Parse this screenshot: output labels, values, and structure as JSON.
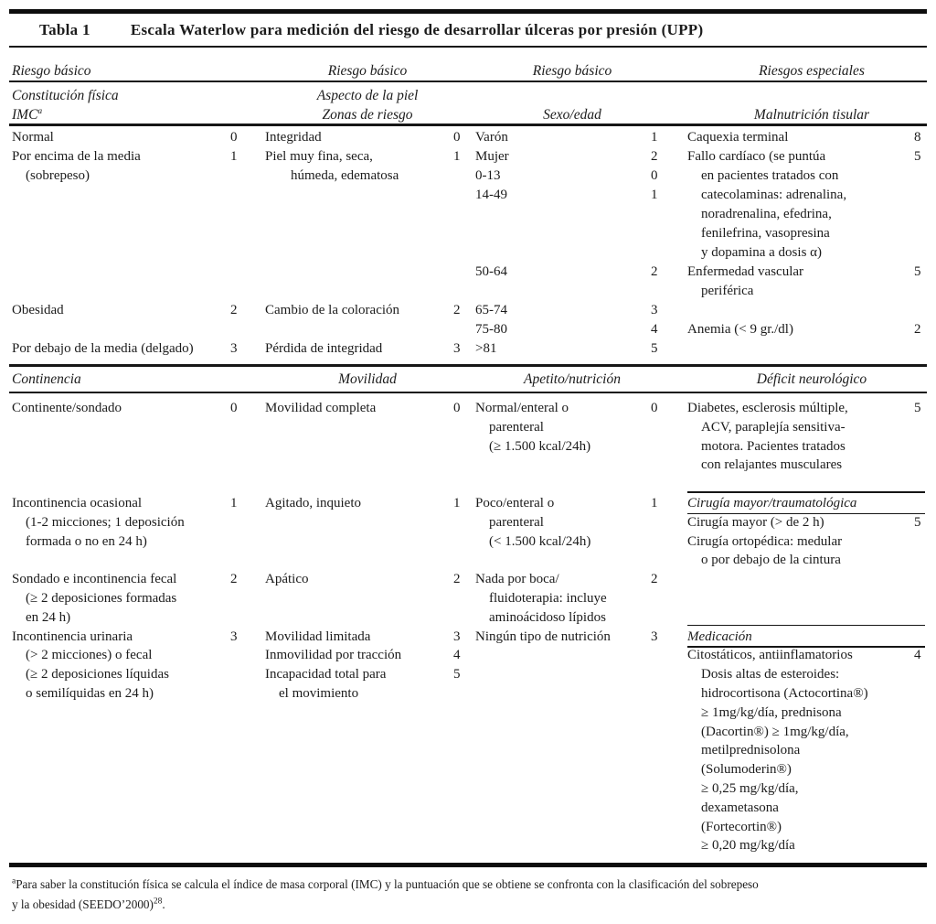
{
  "title": {
    "label": "Tabla 1",
    "text": "Escala Waterlow para medición del riesgo de desarrollar úlceras por presión (UPP)"
  },
  "section1": {
    "headers": [
      "Riesgo básico",
      "Riesgo básico",
      "Riesgo básico",
      "Riesgos especiales"
    ],
    "subheaders": {
      "col1_line1": "Constitución física",
      "col1_line2": "IMC",
      "col1_line2_sup": "a",
      "col2_line1": "Aspecto de la piel",
      "col2_line2": "Zonas de riesgo",
      "col3_line2": "Sexo/edad",
      "col4_line2": "Malnutrición tisular"
    },
    "groups": [
      {
        "lines": [
          {
            "row": 0,
            "text": "Normal",
            "score": "0"
          },
          {
            "row": 1,
            "text": "Por encima de la media",
            "score": "1"
          },
          {
            "row": 2,
            "text": "(sobrepeso)",
            "indent": 1
          },
          {
            "row": 9,
            "text": "Obesidad",
            "score": "2"
          },
          {
            "row": 11,
            "text": "Por debajo de la media (delgado)",
            "score": "3"
          }
        ]
      },
      {
        "lines": [
          {
            "row": 0,
            "text": "Integridad",
            "score": "0"
          },
          {
            "row": 1,
            "text": "Piel muy fina, seca,",
            "score": "1"
          },
          {
            "row": 2,
            "text": "húmeda, edematosa",
            "indent": 2
          },
          {
            "row": 9,
            "text": "Cambio de la coloración",
            "score": "2"
          },
          {
            "row": 11,
            "text": "Pérdida de integridad",
            "score": "3"
          }
        ]
      },
      {
        "lines": [
          {
            "row": 0,
            "text": "Varón",
            "score": "1"
          },
          {
            "row": 1,
            "text": "Mujer",
            "score": "2"
          },
          {
            "row": 2,
            "text": "0-13",
            "score": "0"
          },
          {
            "row": 3,
            "text": "14-49",
            "score": "1"
          },
          {
            "row": 7,
            "text": "50-64",
            "score": "2"
          },
          {
            "row": 9,
            "text": "65-74",
            "score": "3"
          },
          {
            "row": 10,
            "text": "75-80",
            "score": "4"
          },
          {
            "row": 11,
            "text": ">81",
            "score": "5"
          }
        ]
      },
      {
        "lines": [
          {
            "row": 0,
            "text": "Caquexia terminal",
            "score": "8"
          },
          {
            "row": 1,
            "text": "Fallo cardíaco (se puntúa",
            "score": "5"
          },
          {
            "row": 2,
            "text": "en pacientes tratados con",
            "indent": 1
          },
          {
            "row": 3,
            "text": "catecolaminas: adrenalina,",
            "indent": 1
          },
          {
            "row": 4,
            "text": "noradrenalina, efedrina,",
            "indent": 1
          },
          {
            "row": 5,
            "text": "fenilefrina, vasopresina",
            "indent": 1
          },
          {
            "row": 6,
            "text": "y dopamina a dosis α)",
            "indent": 1
          },
          {
            "row": 7,
            "text": "Enfermedad vascular",
            "score": "5"
          },
          {
            "row": 8,
            "text": "periférica",
            "indent": 1
          },
          {
            "row": 10,
            "text": "Anemia (< 9 gr./dl)",
            "score": "2"
          }
        ]
      }
    ]
  },
  "section2": {
    "headers": [
      "Continencia",
      "Movilidad",
      "Apetito/nutrición",
      "Déficit neurológico"
    ],
    "groups": [
      {
        "lines": [
          {
            "row": 0,
            "text": "Continente/sondado",
            "score": "0"
          },
          {
            "row": 5,
            "text": "Incontinencia ocasional",
            "score": "1"
          },
          {
            "row": 6,
            "text": "(1-2 micciones; 1 deposición",
            "indent": 1
          },
          {
            "row": 7,
            "text": "formada o no en 24 h)",
            "indent": 1
          },
          {
            "row": 9,
            "text": "Sondado e incontinencia fecal",
            "score": "2"
          },
          {
            "row": 10,
            "text": "(≥ 2 deposiciones formadas",
            "indent": 1
          },
          {
            "row": 11,
            "text": "en 24 h)",
            "indent": 1
          },
          {
            "row": 12,
            "text": "Incontinencia urinaria",
            "score": "3"
          },
          {
            "row": 13,
            "text": "(> 2 micciones) o fecal",
            "indent": 1
          },
          {
            "row": 14,
            "text": "(≥ 2 deposiciones líquidas",
            "indent": 1
          },
          {
            "row": 15,
            "text": "o semilíquidas en 24 h)",
            "indent": 1
          }
        ]
      },
      {
        "lines": [
          {
            "row": 0,
            "text": "Movilidad completa",
            "score": "0"
          },
          {
            "row": 5,
            "text": "Agitado, inquieto",
            "score": "1"
          },
          {
            "row": 9,
            "text": "Apático",
            "score": "2"
          },
          {
            "row": 12,
            "text": "Movilidad limitada",
            "score": "3"
          },
          {
            "row": 13,
            "text": "Inmovilidad por tracción",
            "score": "4"
          },
          {
            "row": 14,
            "text": "Incapacidad total para",
            "score": "5"
          },
          {
            "row": 15,
            "text": "el movimiento",
            "indent": 1
          }
        ]
      },
      {
        "lines": [
          {
            "row": 0,
            "text": "Normal/enteral o",
            "score": "0"
          },
          {
            "row": 1,
            "text": "parenteral",
            "indent": 1
          },
          {
            "row": 2,
            "text": "(≥ 1.500 kcal/24h)",
            "indent": 1
          },
          {
            "row": 5,
            "text": "Poco/enteral o",
            "score": "1"
          },
          {
            "row": 6,
            "text": "parenteral",
            "indent": 1
          },
          {
            "row": 7,
            "text": "(< 1.500 kcal/24h)",
            "indent": 1
          },
          {
            "row": 9,
            "text": "Nada por boca/",
            "score": "2"
          },
          {
            "row": 10,
            "text": "fluidoterapia: incluye",
            "indent": 1
          },
          {
            "row": 11,
            "text": "aminoácidoso lípidos",
            "indent": 1
          },
          {
            "row": 12,
            "text": "Ningún tipo de nutrición",
            "score": "3"
          }
        ]
      },
      {
        "lines": [
          {
            "row": 0,
            "text": "Diabetes, esclerosis múltiple,",
            "score": "5"
          },
          {
            "row": 1,
            "text": "ACV, paraplejía sensitiva-",
            "indent": 1
          },
          {
            "row": 2,
            "text": "motora. Pacientes tratados",
            "indent": 1
          },
          {
            "row": 3,
            "text": "con relajantes musculares",
            "indent": 1
          },
          {
            "row": 5,
            "text": "Cirugía mayor/traumatológica",
            "italic": true,
            "rule_top": true
          },
          {
            "row": 6,
            "text": "Cirugía mayor (> de 2 h)",
            "score": "5",
            "rule_top": true
          },
          {
            "row": 7,
            "text": "Cirugía ortopédica: medular"
          },
          {
            "row": 8,
            "text": "o por debajo de la cintura",
            "indent": 1
          },
          {
            "row": 12,
            "text": "Medicación",
            "italic": true,
            "rule_top": true
          },
          {
            "row": 13,
            "text": "Citostáticos, antiinflamatorios",
            "score": "4",
            "rule_top": true
          },
          {
            "row": 14,
            "text": "Dosis altas de esteroides:",
            "indent": 1
          },
          {
            "row": 15,
            "text": "hidrocortisona (Actocortina®)",
            "indent": 1
          },
          {
            "row": 16,
            "text": "≥ 1mg/kg/día, prednisona",
            "indent": 1
          },
          {
            "row": 17,
            "text": "(Dacortin®) ≥ 1mg/kg/día,",
            "indent": 1
          },
          {
            "row": 18,
            "text": "metilprednisolona",
            "indent": 1
          },
          {
            "row": 19,
            "text": "(Solumoderin®)",
            "indent": 1
          },
          {
            "row": 20,
            "text": "≥ 0,25 mg/kg/día,",
            "indent": 1
          },
          {
            "row": 21,
            "text": "dexametasona",
            "indent": 1
          },
          {
            "row": 22,
            "text": "(Fortecortin®)",
            "indent": 1
          },
          {
            "row": 23,
            "text": "≥ 0,20 mg/kg/día",
            "indent": 1
          }
        ]
      }
    ]
  },
  "footnote": {
    "sup_lead": "a",
    "line1": "Para saber la constitución física se calcula el índice de masa corporal (IMC) y la puntuación que se obtiene se confronta con la clasificación del sobrepeso",
    "line2": "y la obesidad (SEEDO’2000)",
    "line2_sup": "28",
    "line2_end": "."
  }
}
